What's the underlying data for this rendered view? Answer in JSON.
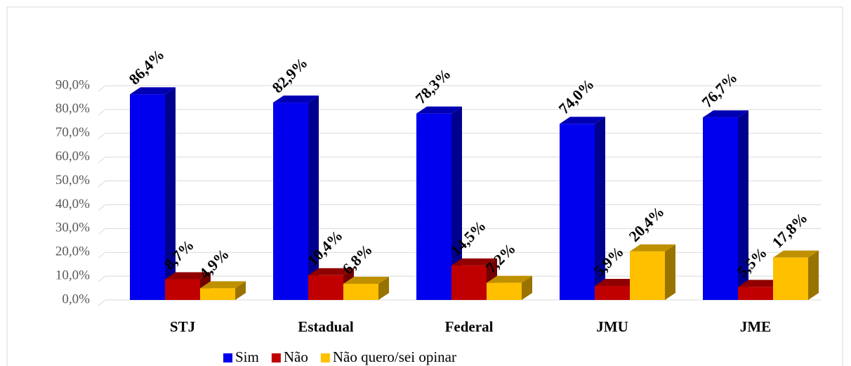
{
  "chart_data": {
    "type": "bar3d",
    "categories": [
      "STJ",
      "Estadual",
      "Federal",
      "JMU",
      "JME"
    ],
    "series": [
      {
        "name": "Sim",
        "color": "#0000ee",
        "values": [
          86.4,
          82.9,
          78.3,
          74.0,
          76.7
        ],
        "value_labels": [
          "86,4%",
          "82,9%",
          "78,3%",
          "74,0%",
          "76,7%"
        ]
      },
      {
        "name": "Não",
        "color": "#c00000",
        "values": [
          8.7,
          10.4,
          14.5,
          5.9,
          5.5
        ],
        "value_labels": [
          "8,7%",
          "10,4%",
          "14,5%",
          "5,9%",
          "5,5%"
        ]
      },
      {
        "name": "Não quero/sei opinar",
        "color": "#ffc000",
        "values": [
          4.9,
          6.8,
          7.2,
          20.4,
          17.8
        ],
        "value_labels": [
          "4,9%",
          "6,8%",
          "7,2%",
          "20,4%",
          "17,8%"
        ]
      }
    ],
    "ylim": [
      0,
      90
    ],
    "yticks": [
      {
        "value": 0,
        "label": "0,0%"
      },
      {
        "value": 10,
        "label": "10,0%"
      },
      {
        "value": 20,
        "label": "20,0%"
      },
      {
        "value": 30,
        "label": "30,0%"
      },
      {
        "value": 40,
        "label": "40,0%"
      },
      {
        "value": 50,
        "label": "50,0%"
      },
      {
        "value": 60,
        "label": "60,0%"
      },
      {
        "value": 70,
        "label": "70,0%"
      },
      {
        "value": 80,
        "label": "80,0%"
      },
      {
        "value": 90,
        "label": "90,0%"
      }
    ],
    "grid": true,
    "legend": "bottom"
  }
}
